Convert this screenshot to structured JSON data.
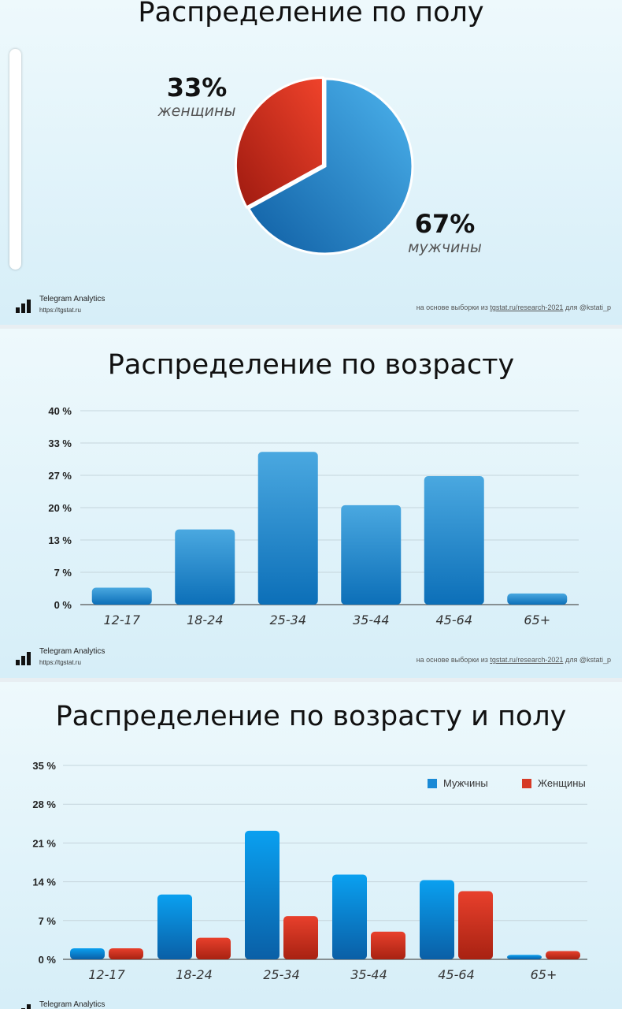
{
  "colors": {
    "male": "#1a8ad6",
    "female": "#d63a26",
    "bar_blue": "#1a85cf"
  },
  "gender": {
    "title": "Распределение по полу",
    "female": {
      "pct": "33%",
      "label": "женщины",
      "value": 33
    },
    "male": {
      "pct": "67%",
      "label": "мужчины",
      "value": 67
    }
  },
  "age": {
    "title": "Распределение по возрасту"
  },
  "age_gender": {
    "title": "Распределение по возрасту и полу",
    "legend_male": "Мужчины",
    "legend_female": "Женщины"
  },
  "footer": {
    "brand": "Telegram Analytics",
    "url": "https://tgstat.ru",
    "source_prefix": "на основе выборки из",
    "source_link": "tgstat.ru/research-2021",
    "source_suffix": "для @kstati_p"
  },
  "chart_data": [
    {
      "type": "pie",
      "title": "Распределение по полу",
      "categories": [
        "женщины",
        "мужчины"
      ],
      "values": [
        33,
        67
      ]
    },
    {
      "type": "bar",
      "title": "Распределение по возрасту",
      "categories": [
        "12-17",
        "18-24",
        "25-34",
        "35-44",
        "45-64",
        "65+"
      ],
      "values": [
        3.5,
        15.5,
        31.5,
        20.5,
        26.5,
        2.3
      ],
      "yticks": [
        "0 %",
        "7 %",
        "13 %",
        "20 %",
        "27 %",
        "33 %",
        "40 %"
      ],
      "ylim": [
        0,
        40
      ]
    },
    {
      "type": "bar",
      "title": "Распределение по возрасту и полу",
      "categories": [
        "12-17",
        "18-24",
        "25-34",
        "35-44",
        "45-64",
        "65+"
      ],
      "series": [
        {
          "name": "Мужчины",
          "values": [
            2,
            11.7,
            23.2,
            15.3,
            14.3,
            0.8
          ]
        },
        {
          "name": "Женщины",
          "values": [
            2,
            3.9,
            7.8,
            5,
            12.3,
            1.5
          ]
        }
      ],
      "yticks": [
        "0 %",
        "7 %",
        "14 %",
        "21 %",
        "28 %",
        "35 %"
      ],
      "ylim": [
        0,
        35
      ]
    }
  ]
}
